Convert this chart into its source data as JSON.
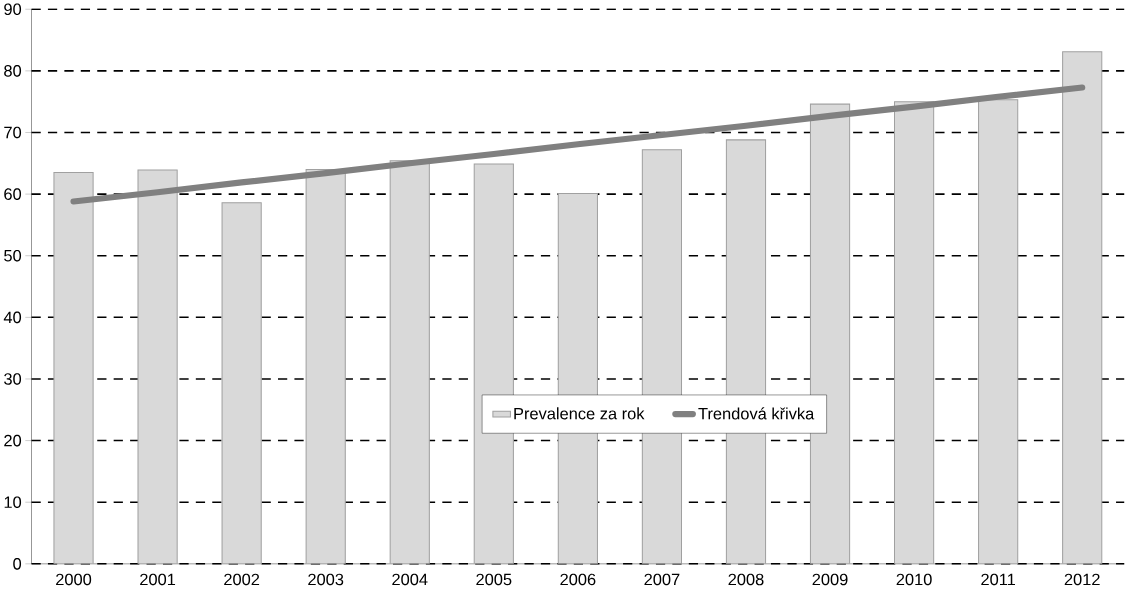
{
  "chart_data": {
    "type": "bar",
    "categories": [
      "2000",
      "2001",
      "2002",
      "2003",
      "2004",
      "2005",
      "2006",
      "2007",
      "2008",
      "2009",
      "2010",
      "2011",
      "2012"
    ],
    "series": [
      {
        "name": "Prevalence za rok",
        "color": "#d9d9d9",
        "values": [
          63.5,
          63.9,
          58.6,
          64.0,
          65.4,
          64.9,
          60.1,
          67.2,
          68.8,
          74.6,
          75.0,
          75.3,
          83.1
        ]
      },
      {
        "name": "Trendová křivka",
        "type": "line",
        "color": "#808080",
        "values": [
          58.8,
          60.3,
          61.9,
          63.4,
          65.0,
          66.5,
          68.1,
          69.6,
          71.1,
          72.7,
          74.2,
          75.8,
          77.3
        ]
      }
    ],
    "ylim": [
      0,
      90
    ],
    "yticks": [
      0,
      10,
      20,
      30,
      40,
      50,
      60,
      70,
      80,
      90
    ],
    "grid": "y",
    "legend": "bottom",
    "line_style": "solid",
    "marker": "none"
  }
}
